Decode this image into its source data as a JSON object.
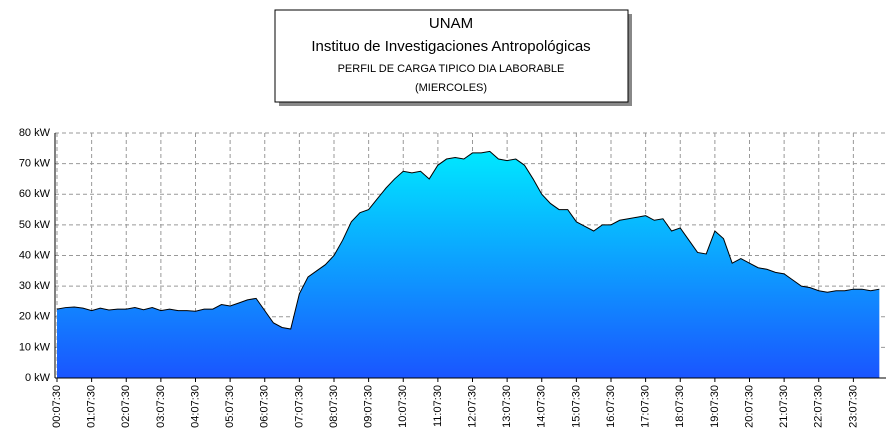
{
  "chart_data": {
    "type": "area",
    "title": [
      "UNAM",
      "Instituo de Investigaciones Antropológicas",
      "PERFIL DE CARGA TIPICO DIA LABORABLE",
      "(MIERCOLES)"
    ],
    "title_colors": [
      "#ff0000",
      "#ff0000",
      "#0000cc",
      "#0000cc"
    ],
    "categories": [
      "00:07:30",
      null,
      null,
      null,
      "01:07:30",
      null,
      null,
      null,
      "02:07:30",
      null,
      null,
      null,
      "03:07:30",
      null,
      null,
      null,
      "04:07:30",
      null,
      null,
      null,
      "05:07:30",
      null,
      null,
      null,
      "06:07:30",
      null,
      null,
      null,
      "07:07:30",
      null,
      null,
      null,
      "08:07:30",
      null,
      null,
      null,
      "09:07:30",
      null,
      null,
      null,
      "10:07:30",
      null,
      null,
      null,
      "11:07:30",
      null,
      null,
      null,
      "12:07:30",
      null,
      null,
      null,
      "13:07:30",
      null,
      null,
      null,
      "14:07:30",
      null,
      null,
      null,
      "15:07:30",
      null,
      null,
      null,
      "16:07:30",
      null,
      null,
      null,
      "17:07:30",
      null,
      null,
      null,
      "18:07:30",
      null,
      null,
      null,
      "19:07:30",
      null,
      null,
      null,
      "20:07:30",
      null,
      null,
      null,
      "21:07:30",
      null,
      null,
      null,
      "22:07:30",
      null,
      null,
      null,
      "23:07:30",
      null,
      null,
      null
    ],
    "values": [
      22.5,
      23,
      23.2,
      22.8,
      22,
      22.8,
      22.2,
      22.5,
      22.5,
      23,
      22.3,
      23,
      22,
      22.5,
      22,
      22,
      21.8,
      22.5,
      22.5,
      24,
      23.5,
      24.5,
      25.5,
      26,
      22,
      18,
      16.5,
      16,
      27.5,
      33,
      35,
      37,
      40,
      45,
      51,
      54,
      55,
      58.5,
      62,
      65,
      67.5,
      67,
      67.5,
      65,
      69.5,
      71.5,
      72,
      71.5,
      73.5,
      73.5,
      74,
      71.5,
      71,
      71.5,
      69.5,
      65,
      60,
      57,
      55,
      55,
      51,
      49.5,
      48,
      50,
      50,
      51.5,
      52,
      52.5,
      53,
      51.5,
      52,
      48,
      49,
      45,
      41,
      40.5,
      48,
      45.5,
      37.5,
      39,
      37.5,
      36,
      35.5,
      34.5,
      34,
      32,
      30,
      29.5,
      28.5,
      28,
      28.5,
      28.5,
      29,
      29,
      28.5,
      29
    ],
    "gradient": [
      "#00e8ff",
      "#1a55ff"
    ],
    "line_color": "#000000",
    "ylim": [
      0,
      80
    ],
    "yticks": [
      {
        "value": 0,
        "label": "0 kW"
      },
      {
        "value": 10,
        "label": "10 kW"
      },
      {
        "value": 20,
        "label": "20 kW"
      },
      {
        "value": 30,
        "label": "30 kW"
      },
      {
        "value": 40,
        "label": "40 kW"
      },
      {
        "value": 50,
        "label": "50 kW"
      },
      {
        "value": 60,
        "label": "60 kW"
      },
      {
        "value": 70,
        "label": "70 kW"
      },
      {
        "value": 80,
        "label": "80 kW"
      }
    ],
    "grid": true
  }
}
